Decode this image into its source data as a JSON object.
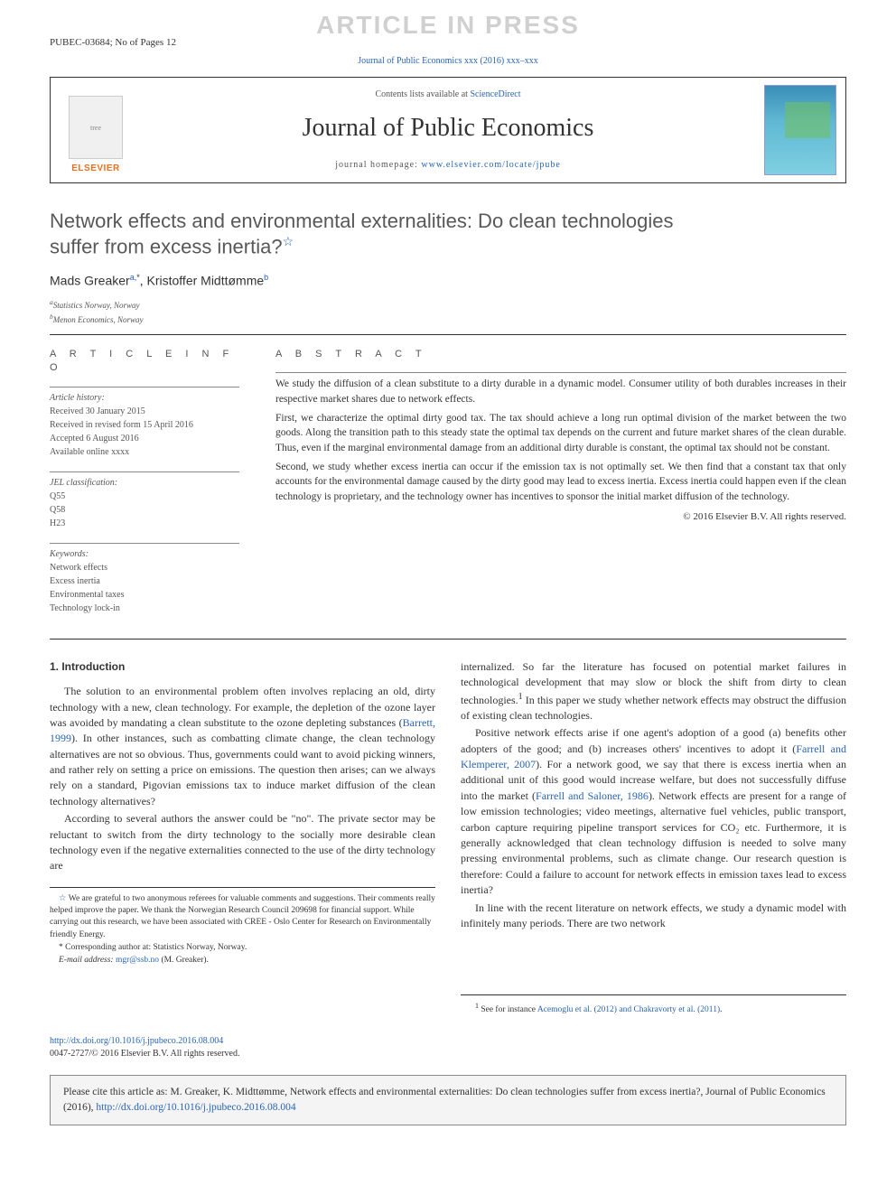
{
  "watermark": "ARTICLE IN PRESS",
  "top_left": "PUBEC-03684; No of Pages 12",
  "mini_citation_pre": "Journal of Public Economics xxx (2016) xxx–xxx",
  "header": {
    "contents_label": "Contents lists available at ",
    "contents_link": "ScienceDirect",
    "journal": "Journal of Public Economics",
    "homepage_label": "journal homepage: ",
    "homepage_link": "www.elsevier.com/locate/jpube",
    "publisher": "ELSEVIER"
  },
  "title_line1": "Network effects and environmental externalities: Do clean technologies",
  "title_line2": "suffer from excess inertia?",
  "authors_html_a": "Mads Greaker",
  "authors_sup_a": "a,",
  "authors_corr": "*",
  "authors_html_b": ", Kristoffer Midttømme",
  "authors_sup_b": "b",
  "affiliations": {
    "a": "Statistics Norway, Norway",
    "b": "Menon Economics, Norway"
  },
  "labels": {
    "article_info": "A R T I C L E   I N F O",
    "abstract": "A B S T R A C T"
  },
  "history": {
    "hdr": "Article history:",
    "received": "Received 30 January 2015",
    "revised": "Received in revised form 15 April 2016",
    "accepted": "Accepted 6 August 2016",
    "online": "Available online xxxx"
  },
  "jel": {
    "hdr": "JEL classification:",
    "c1": "Q55",
    "c2": "Q58",
    "c3": "H23"
  },
  "keywords": {
    "hdr": "Keywords:",
    "k1": "Network effects",
    "k2": "Excess inertia",
    "k3": "Environmental taxes",
    "k4": "Technology lock-in"
  },
  "abstract": {
    "p1": "We study the diffusion of a clean substitute to a dirty durable in a dynamic model. Consumer utility of both durables increases in their respective market shares due to network effects.",
    "p2": "First, we characterize the optimal dirty good tax. The tax should achieve a long run optimal division of the market between the two goods. Along the transition path to this steady state the optimal tax depends on the current and future market shares of the clean durable. Thus, even if the marginal environmental damage from an additional dirty durable is constant, the optimal tax should not be constant.",
    "p3": "Second, we study whether excess inertia can occur if the emission tax is not optimally set. We then find that a constant tax that only accounts for the environmental damage caused by the dirty good may lead to excess inertia. Excess inertia could happen even if the clean technology is proprietary, and the technology owner has incentives to sponsor the initial market diffusion of the technology.",
    "copyright": "© 2016 Elsevier B.V. All rights reserved."
  },
  "intro_hdr": "1. Introduction",
  "intro": {
    "p1a": "The solution to an environmental problem often involves replacing an old, dirty technology with a new, clean technology. For example, the depletion of the ozone layer was avoided by mandating a clean substitute to the ozone depleting substances (",
    "p1_link": "Barrett, 1999",
    "p1b": "). In other instances, such as combatting climate change, the clean technology alternatives are not so obvious. Thus, governments could want to avoid picking winners, and rather rely on setting a price on emissions. The question then arises; can we always rely on a standard, Pigovian emissions tax to induce market diffusion of the clean technology alternatives?",
    "p2": "According to several authors the answer could be \"no\". The private sector may be reluctant to switch from the dirty technology to the socially more desirable clean technology even if the negative externalities connected to the use of the dirty technology are",
    "p3a": "internalized. So far the literature has focused on potential market failures in technological development that may slow or block the shift from dirty to clean technologies.",
    "p3_sup": "1",
    "p3b": " In this paper we study whether network effects may obstruct the diffusion of existing clean technologies.",
    "p4a": "Positive network effects arise if one agent's adoption of a good (a) benefits other adopters of the good; and (b) increases others' incentives to adopt it (",
    "p4_link1": "Farrell and Klemperer, 2007",
    "p4b": "). For a network good, we say that there is excess inertia when an additional unit of this good would increase welfare, but does not successfully diffuse into the market (",
    "p4_link2": "Farrell and Saloner, 1986",
    "p4c": "). Network effects are present for a range of low emission technologies; video meetings, alternative fuel vehicles, public transport, carbon capture requiring pipeline transport services for CO₂ etc. Furthermore, it is generally acknowledged that clean technology diffusion is needed to solve many pressing environmental problems, such as climate change. Our research question is therefore: Could a failure to account for network effects in emission taxes lead to excess inertia?",
    "p5": "In line with the recent literature on network effects, we study a dynamic model with infinitely many periods. There are two network"
  },
  "footnotes_left": {
    "star": "We are grateful to two anonymous referees for valuable comments and suggestions. Their comments really helped improve the paper. We thank the Norwegian Research Council 209698 for financial support. While carrying out this research, we have been associated with CREE - Oslo Center for Research on Environmentally friendly Energy.",
    "corr": "Corresponding author at: Statistics Norway, Norway.",
    "email_label": "E-mail address: ",
    "email": "mgr@ssb.no",
    "email_after": " (M. Greaker)."
  },
  "footnotes_right": {
    "n1a": "See for instance ",
    "n1_link": "Acemoglu et al. (2012) and Chakravorty et al. (2011)",
    "n1b": "."
  },
  "bottom": {
    "doi": "http://dx.doi.org/10.1016/j.jpubeco.2016.08.004",
    "issn": "0047-2727/© 2016 Elsevier B.V. All rights reserved."
  },
  "citebox": {
    "text_a": "Please cite this article as: M. Greaker, K. Midttømme, Network effects and environmental externalities: Do clean technologies suffer from excess inertia?, Journal of Public Economics (2016), ",
    "link": "http://dx.doi.org/10.1016/j.jpubeco.2016.08.004"
  },
  "colors": {
    "link": "#2964b0",
    "elsevier_orange": "#ec6f1f",
    "text_gray": "#555555",
    "rule": "#333333"
  }
}
